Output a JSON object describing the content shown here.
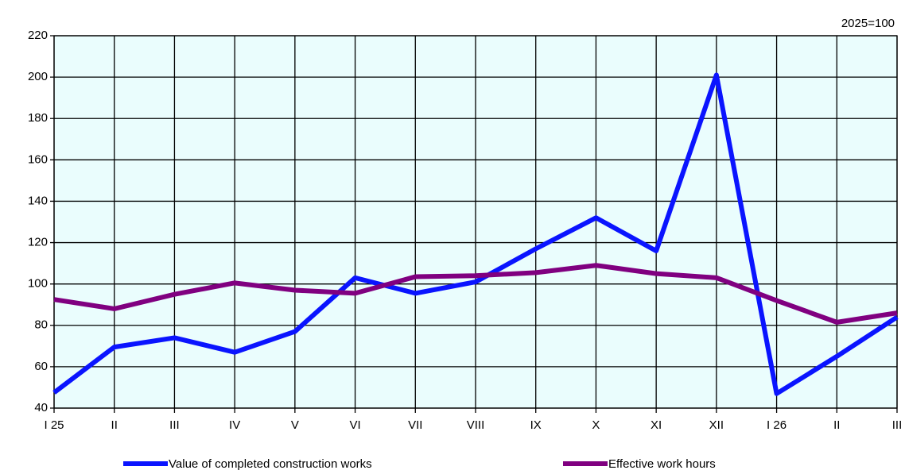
{
  "chart_data": {
    "type": "line",
    "annotation": "2025=100",
    "categories": [
      "I 25",
      "II",
      "III",
      "IV",
      "V",
      "VI",
      "VII",
      "VIII",
      "IX",
      "X",
      "XI",
      "XII",
      "I 26",
      "II",
      "III"
    ],
    "series": [
      {
        "name": "Value of completed construction works",
        "color": "#0a14ff",
        "values": [
          47.5,
          69.5,
          74,
          67,
          77,
          103,
          95.5,
          101,
          117,
          132,
          116,
          201,
          47,
          65,
          84
        ]
      },
      {
        "name": "Effective work hours",
        "color": "#800080",
        "values": [
          92.5,
          88,
          95,
          100.5,
          97,
          95.5,
          103.5,
          104,
          105.5,
          109,
          105,
          103,
          92,
          81.5,
          86
        ]
      }
    ],
    "ylim": [
      40,
      220
    ],
    "yticks": [
      40,
      60,
      80,
      100,
      120,
      140,
      160,
      180,
      200,
      220
    ],
    "grid": true,
    "plot_background": "#eafdfd",
    "legend": "bottom"
  }
}
